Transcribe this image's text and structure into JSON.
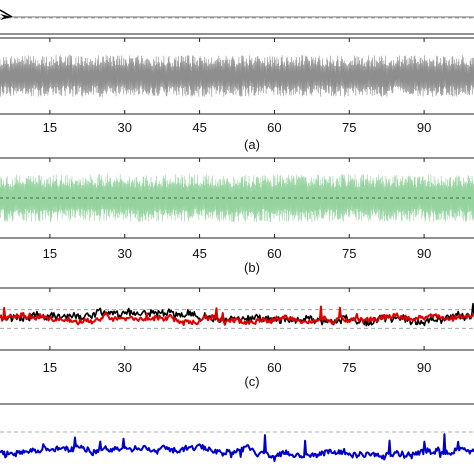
{
  "chart_data": [
    {
      "type": "line",
      "panel": "top",
      "caption": "",
      "x_ticks": [],
      "xlim": [
        0,
        100
      ],
      "grid": "dashed horizontal lines",
      "series": [
        {
          "color": "#000000",
          "values": [
            0,
            0
          ]
        }
      ],
      "annotation": "arrowhead pointing left at left edge"
    },
    {
      "type": "line",
      "panel": "a",
      "caption": "(a)",
      "x_ticks": [
        "15",
        "30",
        "45",
        "60",
        "75",
        "90"
      ],
      "x_tick_values": [
        15,
        30,
        45,
        60,
        75,
        90
      ],
      "xlim": [
        5,
        100
      ],
      "ylim": [
        -1,
        1
      ],
      "series": [
        {
          "color": "#888888",
          "style": "dense oscillation",
          "amplitude": 0.55,
          "points": 1100
        }
      ]
    },
    {
      "type": "line",
      "panel": "b",
      "caption": "(b)",
      "x_ticks": [
        "15",
        "30",
        "45",
        "60",
        "75",
        "90"
      ],
      "x_tick_values": [
        15,
        30,
        45,
        60,
        75,
        90
      ],
      "xlim": [
        5,
        100
      ],
      "ylim": [
        -1,
        1
      ],
      "series": [
        {
          "color": "#8fd19a",
          "style": "dense oscillation",
          "amplitude": 0.6,
          "points": 1200
        },
        {
          "color": "#3a3a3a",
          "style": "dashed center line",
          "amplitude": 0
        }
      ]
    },
    {
      "type": "line",
      "panel": "c",
      "caption": "(c)",
      "x_ticks": [
        "15",
        "30",
        "45",
        "60",
        "75",
        "90"
      ],
      "x_tick_values": [
        15,
        30,
        45,
        60,
        75,
        90
      ],
      "xlim": [
        5,
        100
      ],
      "ylim": [
        -1,
        1
      ],
      "series": [
        {
          "color": "#000000",
          "style": "noisy trace",
          "level": 0.05,
          "noise": 0.22,
          "points": 450
        },
        {
          "color": "#e00000",
          "style": "noisy trace",
          "level": 0.0,
          "noise": 0.15,
          "points": 450
        }
      ],
      "reference_lines": [
        0.3,
        -0.3
      ]
    },
    {
      "type": "line",
      "panel": "d",
      "caption": "",
      "x_ticks": [],
      "xlim": [
        5,
        100
      ],
      "ylim": [
        -1,
        1
      ],
      "series": [
        {
          "color": "#0000cc",
          "style": "noisy trace",
          "level": -0.2,
          "noise": 0.12,
          "points": 450
        }
      ],
      "reference_lines": [
        0.3
      ]
    }
  ]
}
